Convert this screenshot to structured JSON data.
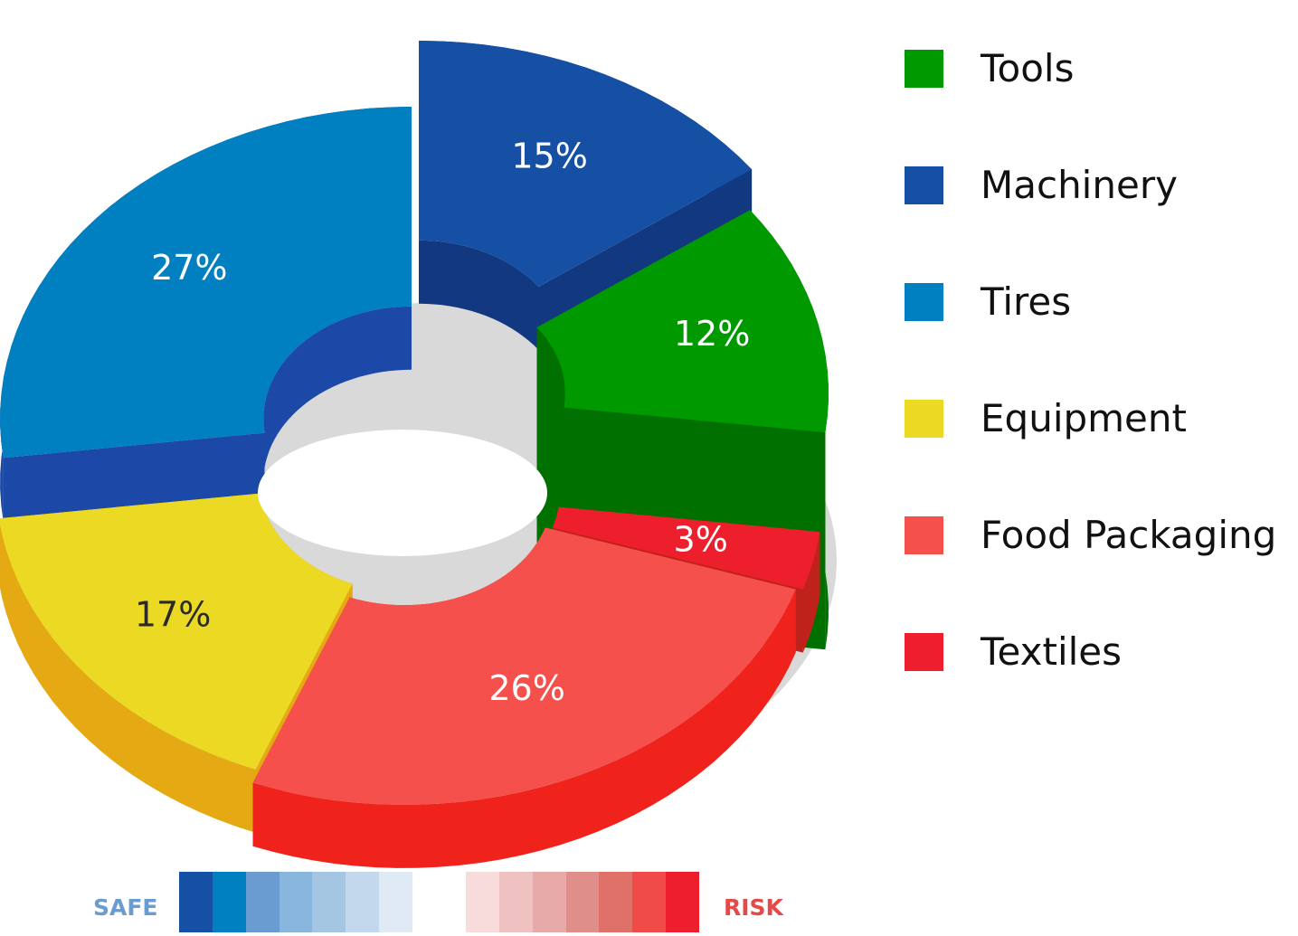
{
  "chart_data": {
    "type": "pie",
    "style": "3d-exploded-donut",
    "series": [
      {
        "name": "Machinery",
        "value": 15,
        "label": "15%",
        "color": "#1650a5",
        "side_color": "#12387f"
      },
      {
        "name": "Tools",
        "value": 12,
        "label": "12%",
        "color": "#009a00",
        "side_color": "#007000"
      },
      {
        "name": "Textiles",
        "value": 3,
        "label": "3%",
        "color": "#ee1f2c",
        "side_color": "#be221b"
      },
      {
        "name": "Food Packaging",
        "value": 26,
        "label": "26%",
        "color": "#f5504c",
        "side_color": "#ef231c"
      },
      {
        "name": "Equipment",
        "value": 17,
        "label": "17%",
        "color": "#ecd923",
        "side_color": "#e4a913"
      },
      {
        "name": "Tires",
        "value": 27,
        "label": "27%",
        "color": "#0080c0",
        "side_color": "#1c48a8"
      }
    ],
    "legend_placement": "right",
    "legend": [
      {
        "label": "Tools",
        "color": "#009a00"
      },
      {
        "label": "Machinery",
        "color": "#1650a5"
      },
      {
        "label": "Tires",
        "color": "#0080c0"
      },
      {
        "label": "Equipment",
        "color": "#ecd923"
      },
      {
        "label": "Food Packaging",
        "color": "#f5504c"
      },
      {
        "label": "Textiles",
        "color": "#ee1f2c"
      }
    ],
    "scale": {
      "safe_label": "SAFE",
      "risk_label": "RISK",
      "safe_color": "#6a9bd1",
      "risk_color": "#e44a49",
      "safe_steps": [
        "#1650a5",
        "#0080c0",
        "#6a9bd1",
        "#89b6dc",
        "#a5c6e3",
        "#c3d8ec",
        "#dfeaf5"
      ],
      "risk_steps": [
        "#f8dcdc",
        "#f0c1c1",
        "#e8aaa8",
        "#e08e89",
        "#e07168",
        "#f04a49",
        "#ee1f2c"
      ]
    }
  }
}
